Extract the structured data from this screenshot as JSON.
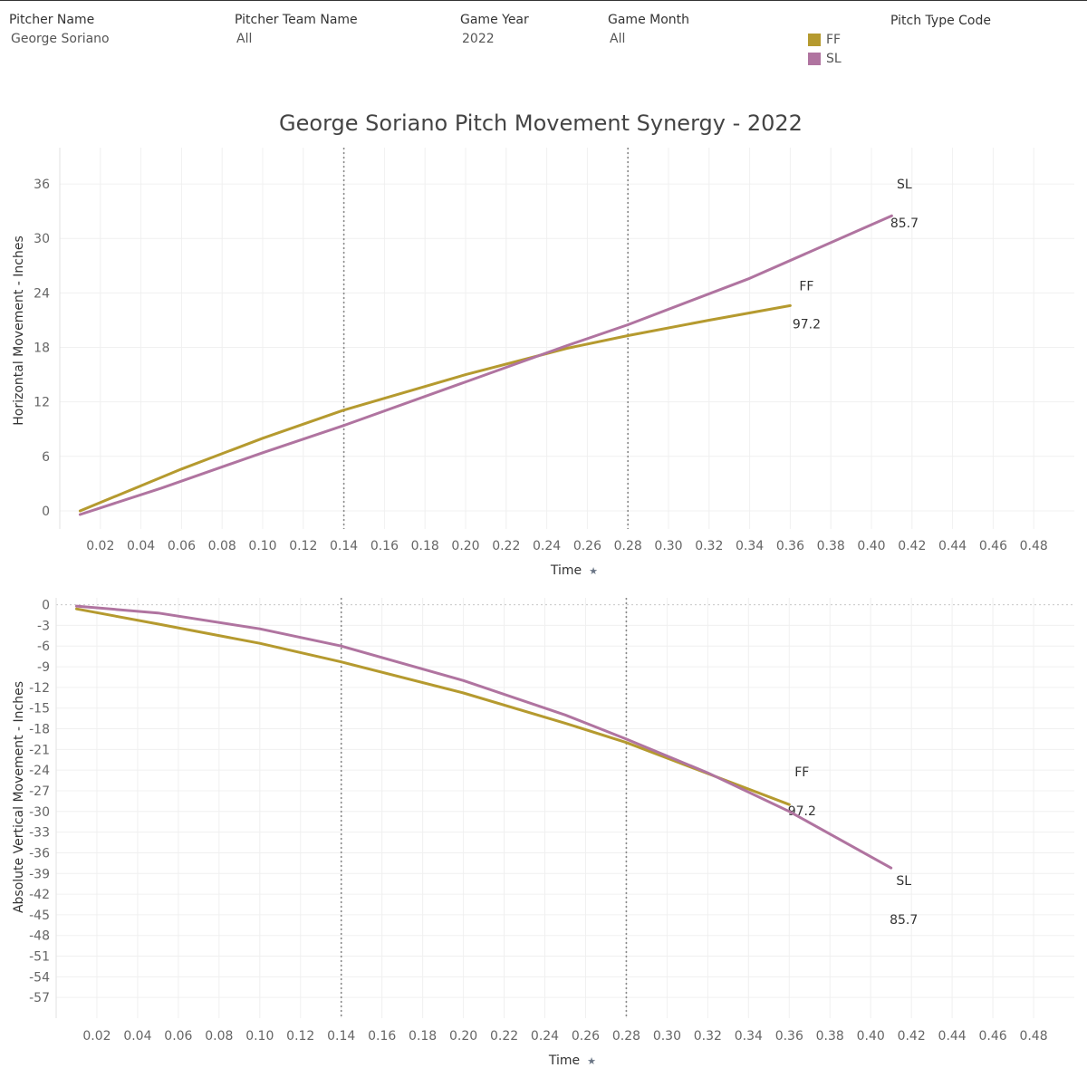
{
  "filters": [
    {
      "label": "Pitcher Name",
      "value": "George Soriano"
    },
    {
      "label": "Pitcher Team Name",
      "value": "All"
    },
    {
      "label": "Game Year",
      "value": "2022"
    },
    {
      "label": "Game Month",
      "value": "All"
    }
  ],
  "legend": {
    "title": "Pitch Type Code",
    "items": [
      {
        "code": "FF",
        "color": "#b59a2f"
      },
      {
        "code": "SL",
        "color": "#b074a0"
      }
    ]
  },
  "chart_data": [
    {
      "type": "line",
      "title": "George Soriano Pitch Movement Synergy - 2022",
      "xlabel": "Time",
      "ylabel": "Horizontal Movement - Inches",
      "xlim": [
        0.0,
        0.5
      ],
      "ylim": [
        -2,
        40
      ],
      "xticks": [
        "0.02",
        "0.04",
        "0.06",
        "0.08",
        "0.10",
        "0.12",
        "0.14",
        "0.16",
        "0.18",
        "0.20",
        "0.22",
        "0.24",
        "0.26",
        "0.28",
        "0.30",
        "0.32",
        "0.34",
        "0.36",
        "0.38",
        "0.40",
        "0.42",
        "0.44",
        "0.46",
        "0.48"
      ],
      "yticks": [
        0,
        6,
        12,
        18,
        24,
        30,
        36
      ],
      "reference_lines_x": [
        0.14,
        0.28
      ],
      "series": [
        {
          "name": "FF",
          "color": "#b59a2f",
          "end_label": [
            "FF",
            "97.2"
          ],
          "x": [
            0.01,
            0.06,
            0.1,
            0.14,
            0.2,
            0.25,
            0.28,
            0.32,
            0.36
          ],
          "y": [
            0.0,
            4.6,
            8.0,
            11.1,
            15.0,
            17.9,
            19.3,
            21.0,
            22.6
          ]
        },
        {
          "name": "SL",
          "color": "#b074a0",
          "end_label": [
            "SL",
            "85.7"
          ],
          "x": [
            0.01,
            0.05,
            0.1,
            0.14,
            0.2,
            0.25,
            0.28,
            0.34,
            0.41
          ],
          "y": [
            -0.4,
            2.5,
            6.4,
            9.4,
            14.2,
            18.2,
            20.5,
            25.6,
            32.5
          ]
        }
      ]
    },
    {
      "type": "line",
      "xlabel": "Time",
      "ylabel": "Absolute Vertical Movement - Inches",
      "xlim": [
        0.0,
        0.5
      ],
      "ylim": [
        -60,
        1
      ],
      "xticks": [
        "0.02",
        "0.04",
        "0.06",
        "0.08",
        "0.10",
        "0.12",
        "0.14",
        "0.16",
        "0.18",
        "0.20",
        "0.22",
        "0.24",
        "0.26",
        "0.28",
        "0.30",
        "0.32",
        "0.34",
        "0.36",
        "0.38",
        "0.40",
        "0.42",
        "0.44",
        "0.46",
        "0.48"
      ],
      "yticks": [
        0,
        -3,
        -6,
        -9,
        -12,
        -15,
        -18,
        -21,
        -24,
        -27,
        -30,
        -33,
        -36,
        -39,
        -42,
        -45,
        -48,
        -51,
        -54,
        -57
      ],
      "reference_lines_x": [
        0.14,
        0.28
      ],
      "series": [
        {
          "name": "FF",
          "color": "#b59a2f",
          "end_label": [
            "FF",
            "97.2"
          ],
          "x": [
            0.01,
            0.05,
            0.1,
            0.14,
            0.2,
            0.25,
            0.28,
            0.32,
            0.36
          ],
          "y": [
            -0.6,
            -2.8,
            -5.6,
            -8.3,
            -12.8,
            -17.2,
            -20.0,
            -24.5,
            -29.0
          ]
        },
        {
          "name": "SL",
          "color": "#b074a0",
          "end_label": [
            "SL",
            "85.7"
          ],
          "x": [
            0.01,
            0.05,
            0.1,
            0.14,
            0.2,
            0.25,
            0.28,
            0.32,
            0.36,
            0.41
          ],
          "y": [
            -0.2,
            -1.2,
            -3.5,
            -6.0,
            -11.0,
            -16.0,
            -19.5,
            -24.4,
            -30.0,
            -38.2
          ]
        }
      ]
    }
  ]
}
